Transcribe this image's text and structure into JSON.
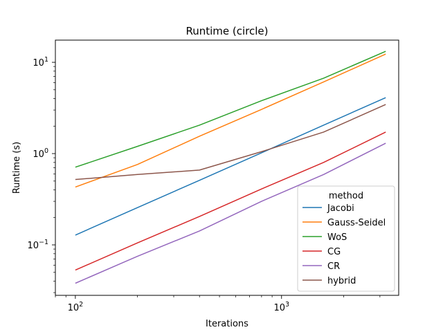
{
  "chart_data": {
    "type": "line",
    "title": "Runtime (circle)",
    "xlabel": "Iterations",
    "ylabel": "Runtime (s)",
    "xscale": "log",
    "yscale": "log",
    "xlim": [
      80,
      3700
    ],
    "ylim": [
      0.028,
      17.5
    ],
    "grid": false,
    "legend": {
      "title": "method",
      "placement": "lower-right"
    },
    "x": [
      100,
      200,
      400,
      800,
      1600,
      3200
    ],
    "x_tick_labels": [
      "10",
      "10"
    ],
    "x_tick_exponents": [
      "2",
      "3"
    ],
    "y_tick_labels": [
      "10",
      "10",
      "10"
    ],
    "y_tick_exponents": [
      "−1",
      "0",
      "1"
    ],
    "series": [
      {
        "name": "Jacobi",
        "color": "#1f77b4",
        "values": [
          0.128,
          0.256,
          0.51,
          1.02,
          2.05,
          4.1
        ]
      },
      {
        "name": "Gauss-Seidel",
        "color": "#ff7f0e",
        "values": [
          0.43,
          0.76,
          1.55,
          3.05,
          6.1,
          12.3
        ]
      },
      {
        "name": "WoS",
        "color": "#2ca02c",
        "values": [
          0.71,
          1.2,
          2.05,
          3.8,
          6.7,
          13.2
        ]
      },
      {
        "name": "CG",
        "color": "#d62728",
        "values": [
          0.053,
          0.105,
          0.205,
          0.41,
          0.8,
          1.72
        ]
      },
      {
        "name": "CR",
        "color": "#9467bd",
        "values": [
          0.038,
          0.075,
          0.142,
          0.3,
          0.59,
          1.3
        ]
      },
      {
        "name": "hybrid",
        "color": "#8c564b",
        "values": [
          0.52,
          0.59,
          0.66,
          1.05,
          1.72,
          3.45
        ]
      }
    ]
  }
}
